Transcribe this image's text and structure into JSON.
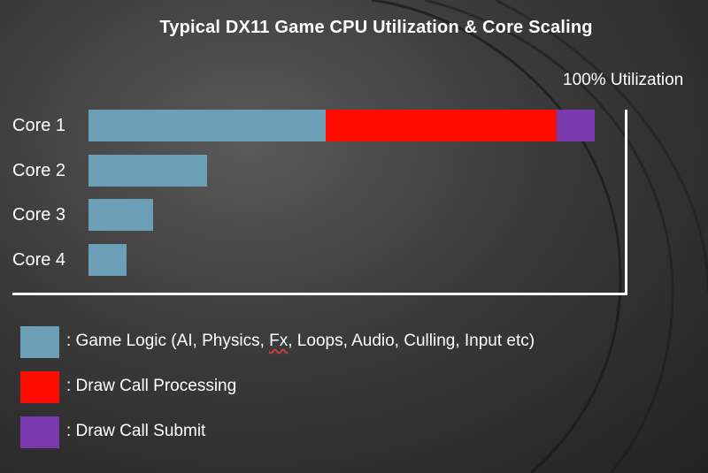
{
  "chart_data": {
    "type": "bar",
    "orientation": "horizontal",
    "stacked": true,
    "title": "Typical DX11 Game CPU Utilization & Core Scaling",
    "max_label": "100% Utilization",
    "xlim": [
      0,
      100
    ],
    "categories": [
      "Core 1",
      "Core 2",
      "Core 3",
      "Core 4"
    ],
    "series": [
      {
        "name": "Game Logic",
        "color": "#6a9fb5",
        "values": [
          44,
          22,
          12,
          7
        ]
      },
      {
        "name": "Draw Call Processing",
        "color": "#ff0c00",
        "values": [
          43,
          0,
          0,
          0
        ]
      },
      {
        "name": "Draw Call Submit",
        "color": "#7a3aad",
        "values": [
          7,
          0,
          0,
          0
        ]
      }
    ],
    "legend": {
      "placement": "bottom-left",
      "entries": [
        {
          "label_prefix": ": Game Logic (AI, Physics, ",
          "label_fx": "Fx",
          "label_suffix": ", Loops, Audio, Culling, Input etc)",
          "color": "#6a9fb5"
        },
        {
          "label": ": Draw Call Processing",
          "color": "#ff0c00"
        },
        {
          "label": ": Draw Call Submit",
          "color": "#7a3aad"
        }
      ]
    }
  }
}
